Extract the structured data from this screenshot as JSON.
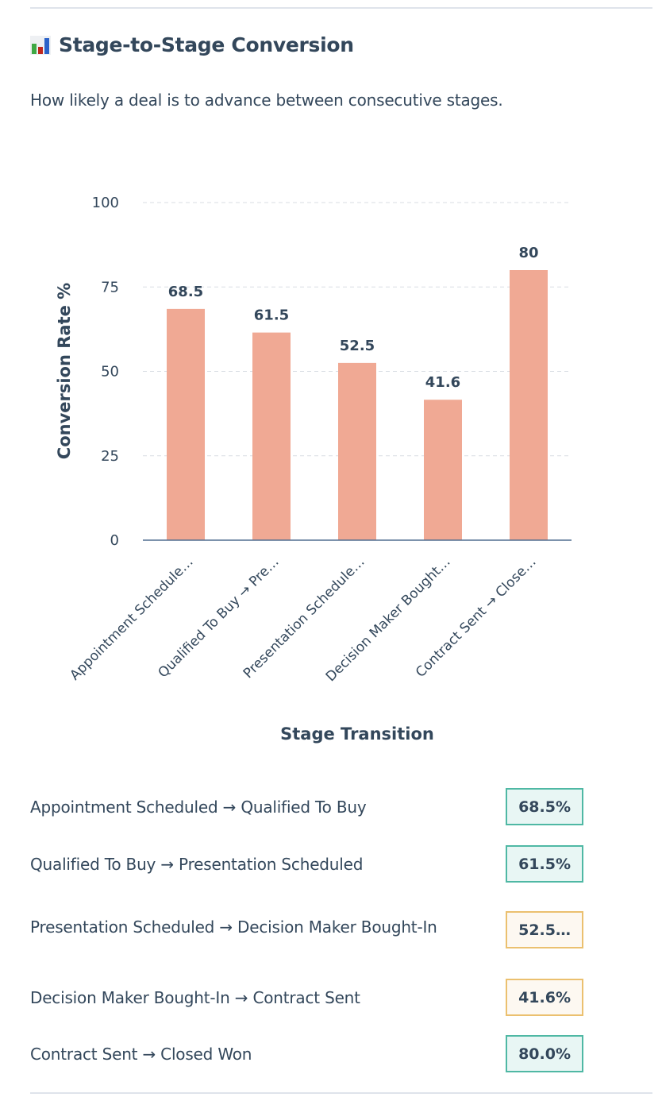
{
  "header": {
    "title": "Stage-to-Stage Conversion",
    "icon": "bar-chart-icon",
    "subtitle": "How likely a deal is to advance between consecutive stages."
  },
  "chart_data": {
    "type": "bar",
    "categories": [
      "Appointment Schedule…",
      "Qualified To Buy → Pre…",
      "Presentation Schedule…",
      "Decision Maker Bought…",
      "Contract Sent → Close…"
    ],
    "values": [
      68.5,
      61.5,
      52.5,
      41.6,
      80
    ],
    "value_labels": [
      "68.5",
      "61.5",
      "52.5",
      "41.6",
      "80"
    ],
    "xlabel": "Stage Transition",
    "ylabel": "Conversion Rate %",
    "ylim": [
      0,
      100
    ],
    "yticks": [
      "0",
      "25",
      "50",
      "75",
      "100"
    ],
    "grid": true,
    "bar_color": "#f0a994"
  },
  "rows": [
    {
      "label": "Appointment Scheduled → Qualified To Buy",
      "value": "68.5%",
      "status": "good"
    },
    {
      "label": "Qualified To Buy → Presentation Scheduled",
      "value": "61.5%",
      "status": "good"
    },
    {
      "label": "Presentation Scheduled → Decision Maker Bought-In",
      "value": "52.5…",
      "status": "warn"
    },
    {
      "label": "Decision Maker Bought-In → Contract Sent",
      "value": "41.6%",
      "status": "warn"
    },
    {
      "label": "Contract Sent → Closed Won",
      "value": "80.0%",
      "status": "good"
    }
  ],
  "colors": {
    "good_border": "#4fb8a4",
    "warn_border": "#ebc06f",
    "text": "#33475b"
  }
}
